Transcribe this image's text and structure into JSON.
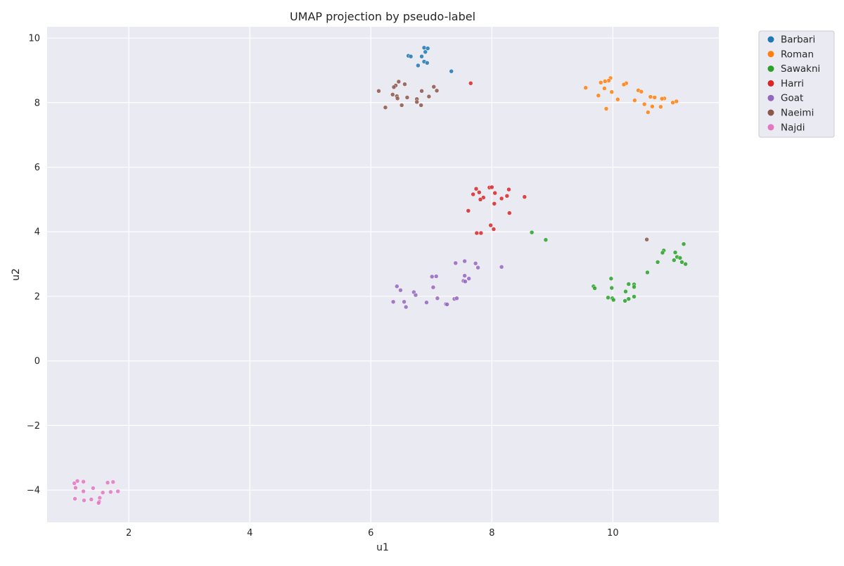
{
  "chart_data": {
    "type": "scatter",
    "title": "UMAP projection by pseudo-label",
    "xlabel": "u1",
    "ylabel": "u2",
    "xlim": [
      0.65,
      11.75
    ],
    "ylim": [
      -5.0,
      10.35
    ],
    "xticks": [
      2,
      4,
      6,
      8,
      10
    ],
    "yticks": [
      -4,
      -2,
      0,
      2,
      4,
      6,
      8,
      10
    ],
    "grid": true,
    "legend_placement": "outside-top-right",
    "series": [
      {
        "name": "Barbari",
        "color": "#1f77b4",
        "points": [
          [
            6.88,
            9.7
          ],
          [
            6.94,
            9.68
          ],
          [
            6.9,
            9.57
          ],
          [
            6.62,
            9.45
          ],
          [
            6.66,
            9.43
          ],
          [
            6.84,
            9.43
          ],
          [
            6.88,
            9.27
          ],
          [
            6.93,
            9.23
          ],
          [
            6.78,
            9.15
          ],
          [
            7.33,
            8.97
          ]
        ]
      },
      {
        "name": "Roman",
        "color": "#ff7f0e",
        "points": [
          [
            9.96,
            8.76
          ],
          [
            9.93,
            8.68
          ],
          [
            9.87,
            8.66
          ],
          [
            9.8,
            8.62
          ],
          [
            10.22,
            8.6
          ],
          [
            10.18,
            8.56
          ],
          [
            9.55,
            8.46
          ],
          [
            9.86,
            8.44
          ],
          [
            10.42,
            8.38
          ],
          [
            10.47,
            8.34
          ],
          [
            9.98,
            8.33
          ],
          [
            9.76,
            8.22
          ],
          [
            10.62,
            8.18
          ],
          [
            10.69,
            8.16
          ],
          [
            10.85,
            8.13
          ],
          [
            10.81,
            8.12
          ],
          [
            10.08,
            8.1
          ],
          [
            10.36,
            8.07
          ],
          [
            11.05,
            8.04
          ],
          [
            10.99,
            8.0
          ],
          [
            10.52,
            7.95
          ],
          [
            10.65,
            7.88
          ],
          [
            10.79,
            7.87
          ],
          [
            9.89,
            7.81
          ],
          [
            10.58,
            7.7
          ]
        ]
      },
      {
        "name": "Sawakni",
        "color": "#2ca02c",
        "points": [
          [
            8.66,
            3.98
          ],
          [
            8.89,
            3.75
          ],
          [
            11.17,
            3.62
          ],
          [
            10.84,
            3.42
          ],
          [
            10.82,
            3.35
          ],
          [
            11.03,
            3.36
          ],
          [
            11.06,
            3.22
          ],
          [
            11.11,
            3.19
          ],
          [
            11.01,
            3.12
          ],
          [
            11.14,
            3.06
          ],
          [
            10.74,
            3.06
          ],
          [
            11.2,
            3.0
          ],
          [
            10.57,
            2.74
          ],
          [
            9.97,
            2.55
          ],
          [
            10.26,
            2.38
          ],
          [
            10.35,
            2.37
          ],
          [
            10.35,
            2.29
          ],
          [
            9.68,
            2.31
          ],
          [
            9.7,
            2.25
          ],
          [
            9.98,
            2.26
          ],
          [
            10.21,
            2.15
          ],
          [
            10.35,
            1.99
          ],
          [
            9.92,
            1.96
          ],
          [
            9.99,
            1.94
          ],
          [
            10.26,
            1.92
          ],
          [
            10.01,
            1.89
          ],
          [
            10.2,
            1.86
          ]
        ]
      },
      {
        "name": "Harri",
        "color": "#d62728",
        "points": [
          [
            7.96,
            5.37
          ],
          [
            8.0,
            5.38
          ],
          [
            7.74,
            5.33
          ],
          [
            8.28,
            5.31
          ],
          [
            7.79,
            5.22
          ],
          [
            8.05,
            5.2
          ],
          [
            7.69,
            5.16
          ],
          [
            8.25,
            5.11
          ],
          [
            7.86,
            5.06
          ],
          [
            8.54,
            5.08
          ],
          [
            8.16,
            5.03
          ],
          [
            7.81,
            5.0
          ],
          [
            8.04,
            4.87
          ],
          [
            7.61,
            4.65
          ],
          [
            8.29,
            4.58
          ],
          [
            7.65,
            8.6
          ],
          [
            7.98,
            4.2
          ],
          [
            8.03,
            4.08
          ],
          [
            7.75,
            3.96
          ],
          [
            7.82,
            3.96
          ]
        ]
      },
      {
        "name": "Goat",
        "color": "#9467bd",
        "points": [
          [
            7.4,
            3.03
          ],
          [
            7.55,
            3.09
          ],
          [
            7.73,
            3.02
          ],
          [
            7.77,
            2.89
          ],
          [
            8.16,
            2.91
          ],
          [
            7.01,
            2.61
          ],
          [
            7.08,
            2.62
          ],
          [
            7.55,
            2.64
          ],
          [
            7.62,
            2.55
          ],
          [
            7.53,
            2.48
          ],
          [
            7.56,
            2.46
          ],
          [
            6.43,
            2.31
          ],
          [
            6.49,
            2.19
          ],
          [
            7.03,
            2.28
          ],
          [
            6.71,
            2.13
          ],
          [
            6.74,
            2.04
          ],
          [
            7.1,
            1.94
          ],
          [
            7.38,
            1.92
          ],
          [
            7.42,
            1.94
          ],
          [
            6.37,
            1.83
          ],
          [
            6.55,
            1.83
          ],
          [
            6.92,
            1.81
          ],
          [
            7.24,
            1.76
          ],
          [
            7.26,
            1.75
          ],
          [
            6.58,
            1.67
          ]
        ]
      },
      {
        "name": "Naeimi",
        "color": "#8c564b",
        "points": [
          [
            6.46,
            8.65
          ],
          [
            6.56,
            8.57
          ],
          [
            6.41,
            8.53
          ],
          [
            6.38,
            8.48
          ],
          [
            7.04,
            8.49
          ],
          [
            6.13,
            8.36
          ],
          [
            7.09,
            8.37
          ],
          [
            6.84,
            8.36
          ],
          [
            6.36,
            8.25
          ],
          [
            6.43,
            8.2
          ],
          [
            6.96,
            8.19
          ],
          [
            6.6,
            8.16
          ],
          [
            6.44,
            8.13
          ],
          [
            6.76,
            8.11
          ],
          [
            6.76,
            8.02
          ],
          [
            6.51,
            7.92
          ],
          [
            6.83,
            7.92
          ],
          [
            6.24,
            7.85
          ],
          [
            10.56,
            3.76
          ]
        ]
      },
      {
        "name": "Najdi",
        "color": "#e377c2",
        "points": [
          [
            1.15,
            -3.72
          ],
          [
            1.25,
            -3.74
          ],
          [
            1.74,
            -3.75
          ],
          [
            1.65,
            -3.77
          ],
          [
            1.1,
            -3.79
          ],
          [
            1.12,
            -3.93
          ],
          [
            1.41,
            -3.94
          ],
          [
            1.25,
            -4.04
          ],
          [
            1.82,
            -4.04
          ],
          [
            1.7,
            -4.06
          ],
          [
            1.57,
            -4.08
          ],
          [
            1.52,
            -4.24
          ],
          [
            1.11,
            -4.27
          ],
          [
            1.38,
            -4.29
          ],
          [
            1.26,
            -4.32
          ],
          [
            1.51,
            -4.36
          ],
          [
            1.5,
            -4.4
          ]
        ]
      }
    ]
  }
}
